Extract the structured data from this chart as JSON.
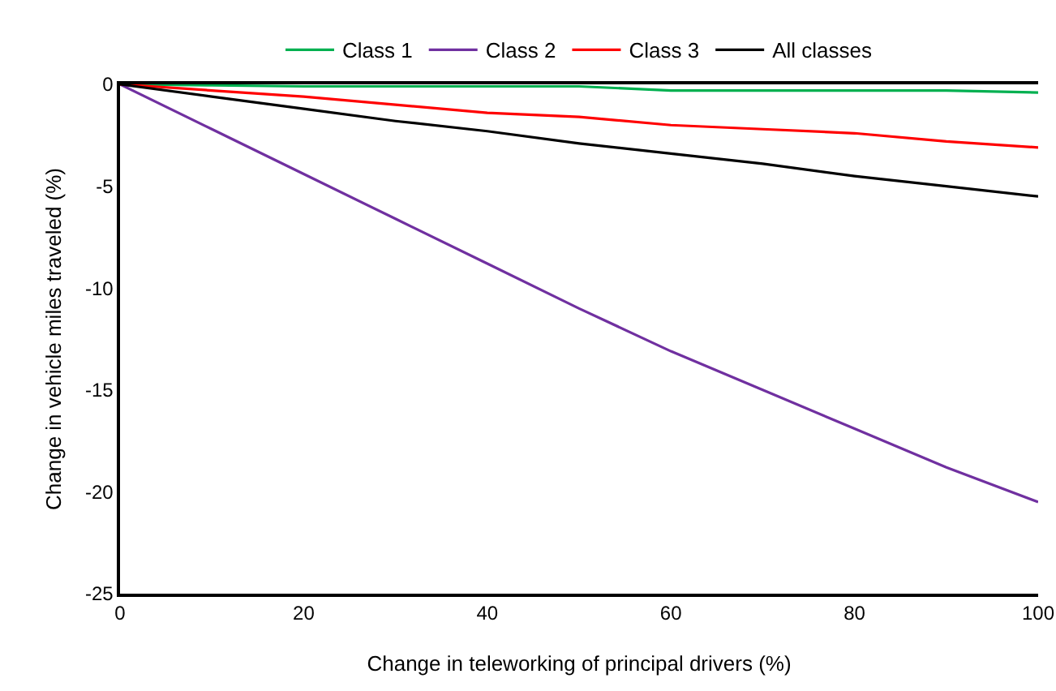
{
  "chart_data": {
    "type": "line",
    "xlabel": "Change in teleworking of principal drivers (%)",
    "ylabel": "Change in vehicle miles traveled (%)",
    "x": [
      0,
      10,
      20,
      30,
      40,
      50,
      60,
      70,
      80,
      90,
      100
    ],
    "series": [
      {
        "name": "Class 1",
        "color": "#00b050",
        "values": [
          0,
          -0.05,
          -0.1,
          -0.1,
          -0.1,
          -0.1,
          -0.3,
          -0.3,
          -0.3,
          -0.3,
          -0.4
        ]
      },
      {
        "name": "Class 2",
        "color": "#7030a0",
        "values": [
          0,
          -2.2,
          -4.4,
          -6.6,
          -8.8,
          -11,
          -13.1,
          -15,
          -16.9,
          -18.8,
          -20.5
        ]
      },
      {
        "name": "Class 3",
        "color": "#ff0000",
        "values": [
          0,
          -0.3,
          -0.6,
          -1.0,
          -1.4,
          -1.6,
          -2.0,
          -2.2,
          -2.4,
          -2.8,
          -3.1
        ]
      },
      {
        "name": "All classes",
        "color": "#000000",
        "values": [
          0,
          -0.6,
          -1.2,
          -1.8,
          -2.3,
          -2.9,
          -3.4,
          -3.9,
          -4.5,
          -5.0,
          -5.5
        ]
      }
    ],
    "xlim": [
      0,
      100
    ],
    "xticks": [
      0,
      20,
      40,
      60,
      80,
      100
    ],
    "ylim": [
      -25,
      0
    ],
    "yticks": [
      -25,
      -20,
      -15,
      -10,
      -5,
      0
    ],
    "grid": false,
    "legend": "top",
    "marker": "none",
    "line_style": "solid"
  }
}
